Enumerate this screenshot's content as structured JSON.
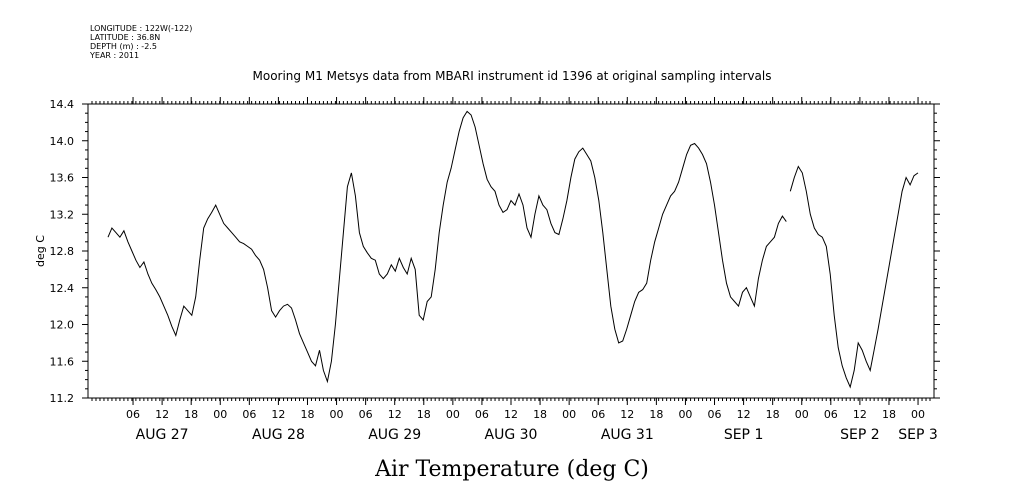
{
  "meta": [
    "LONGITUDE : 122W(-122)",
    "LATITUDE : 36.8N",
    "DEPTH (m) : -2.5",
    "YEAR : 2011"
  ],
  "chart_data": {
    "type": "line",
    "title": "Mooring M1 Metsys data from MBARI instrument id 1396 at original sampling intervals",
    "xlabel": "Air Temperature (deg C)",
    "ylabel": "deg C",
    "ylim": [
      11.2,
      14.4
    ],
    "yticks": [
      "11.2",
      "11.6",
      "12.0",
      "12.4",
      "12.8",
      "13.2",
      "13.6",
      "14.0",
      "14.4"
    ],
    "xlim_hours": [
      0,
      170
    ],
    "x_ticks": [
      {
        "h": 6,
        "label": "06"
      },
      {
        "h": 12,
        "label": "12"
      },
      {
        "h": 18,
        "label": "18"
      },
      {
        "h": 24,
        "label": "00"
      },
      {
        "h": 30,
        "label": "06"
      },
      {
        "h": 36,
        "label": "12"
      },
      {
        "h": 42,
        "label": "18"
      },
      {
        "h": 48,
        "label": "00"
      },
      {
        "h": 54,
        "label": "06"
      },
      {
        "h": 60,
        "label": "12"
      },
      {
        "h": 66,
        "label": "18"
      },
      {
        "h": 72,
        "label": "00"
      },
      {
        "h": 78,
        "label": "06"
      },
      {
        "h": 84,
        "label": "12"
      },
      {
        "h": 90,
        "label": "18"
      },
      {
        "h": 96,
        "label": "00"
      },
      {
        "h": 102,
        "label": "06"
      },
      {
        "h": 108,
        "label": "12"
      },
      {
        "h": 114,
        "label": "18"
      },
      {
        "h": 120,
        "label": "00"
      },
      {
        "h": 126,
        "label": "06"
      },
      {
        "h": 132,
        "label": "12"
      },
      {
        "h": 138,
        "label": "18"
      },
      {
        "h": 144,
        "label": "00"
      },
      {
        "h": 150,
        "label": "06"
      },
      {
        "h": 156,
        "label": "12"
      },
      {
        "h": 162,
        "label": "18"
      },
      {
        "h": 168,
        "label": "00"
      }
    ],
    "day_labels": [
      {
        "h": 12,
        "label": "AUG 27"
      },
      {
        "h": 36,
        "label": "AUG 28"
      },
      {
        "h": 60,
        "label": "AUG 29"
      },
      {
        "h": 84,
        "label": "AUG 30"
      },
      {
        "h": 108,
        "label": "AUG 31"
      },
      {
        "h": 132,
        "label": "SEP  1"
      },
      {
        "h": 156,
        "label": "SEP  2"
      },
      {
        "h": 168,
        "label": "SEP  3"
      }
    ],
    "segments": [
      [
        [
          1,
          12.95
        ],
        [
          2,
          13.05
        ],
        [
          3,
          13.0
        ],
        [
          4,
          12.95
        ],
        [
          5,
          13.02
        ],
        [
          6,
          12.9
        ],
        [
          7,
          12.8
        ],
        [
          8,
          12.7
        ],
        [
          9,
          12.62
        ],
        [
          10,
          12.68
        ],
        [
          11,
          12.55
        ],
        [
          12,
          12.45
        ],
        [
          13,
          12.38
        ],
        [
          14,
          12.3
        ],
        [
          15,
          12.2
        ],
        [
          16,
          12.1
        ],
        [
          17,
          11.98
        ],
        [
          18,
          11.88
        ],
        [
          19,
          12.05
        ],
        [
          20,
          12.2
        ],
        [
          21,
          12.15
        ],
        [
          22,
          12.1
        ],
        [
          23,
          12.3
        ],
        [
          24,
          12.7
        ],
        [
          25,
          13.05
        ],
        [
          26,
          13.15
        ],
        [
          27,
          13.22
        ],
        [
          28,
          13.3
        ],
        [
          29,
          13.2
        ],
        [
          30,
          13.1
        ],
        [
          31,
          13.05
        ],
        [
          32,
          13.0
        ],
        [
          33,
          12.95
        ],
        [
          34,
          12.9
        ],
        [
          35,
          12.88
        ],
        [
          36,
          12.85
        ],
        [
          37,
          12.82
        ],
        [
          38,
          12.75
        ],
        [
          39,
          12.7
        ],
        [
          40,
          12.6
        ],
        [
          41,
          12.4
        ],
        [
          42,
          12.15
        ],
        [
          43,
          12.08
        ],
        [
          44,
          12.15
        ],
        [
          45,
          12.2
        ],
        [
          46,
          12.22
        ],
        [
          47,
          12.18
        ],
        [
          48,
          12.05
        ],
        [
          49,
          11.9
        ],
        [
          50,
          11.8
        ],
        [
          51,
          11.7
        ],
        [
          52,
          11.6
        ],
        [
          53,
          11.55
        ],
        [
          54,
          11.72
        ],
        [
          55,
          11.5
        ],
        [
          56,
          11.38
        ],
        [
          57,
          11.6
        ],
        [
          58,
          12.0
        ],
        [
          59,
          12.5
        ],
        [
          60,
          13.0
        ],
        [
          61,
          13.5
        ],
        [
          62,
          13.65
        ],
        [
          63,
          13.4
        ],
        [
          64,
          13.0
        ],
        [
          65,
          12.85
        ],
        [
          66,
          12.78
        ],
        [
          67,
          12.72
        ],
        [
          68,
          12.7
        ],
        [
          69,
          12.55
        ],
        [
          70,
          12.5
        ],
        [
          71,
          12.55
        ],
        [
          72,
          12.65
        ],
        [
          73,
          12.58
        ],
        [
          74,
          12.72
        ],
        [
          75,
          12.62
        ],
        [
          76,
          12.55
        ],
        [
          77,
          12.72
        ],
        [
          78,
          12.6
        ],
        [
          79,
          12.1
        ],
        [
          80,
          12.05
        ],
        [
          81,
          12.25
        ],
        [
          82,
          12.3
        ],
        [
          83,
          12.6
        ],
        [
          84,
          13.0
        ],
        [
          85,
          13.3
        ],
        [
          86,
          13.55
        ],
        [
          87,
          13.7
        ],
        [
          88,
          13.9
        ],
        [
          89,
          14.1
        ],
        [
          90,
          14.25
        ],
        [
          91,
          14.32
        ],
        [
          92,
          14.28
        ],
        [
          93,
          14.15
        ],
        [
          94,
          13.95
        ],
        [
          95,
          13.75
        ],
        [
          96,
          13.58
        ],
        [
          97,
          13.5
        ],
        [
          98,
          13.45
        ],
        [
          99,
          13.3
        ],
        [
          100,
          13.22
        ],
        [
          101,
          13.25
        ],
        [
          102,
          13.35
        ],
        [
          103,
          13.3
        ],
        [
          104,
          13.42
        ],
        [
          105,
          13.3
        ],
        [
          106,
          13.05
        ],
        [
          107,
          12.95
        ],
        [
          108,
          13.2
        ],
        [
          109,
          13.4
        ],
        [
          110,
          13.3
        ],
        [
          111,
          13.25
        ],
        [
          112,
          13.1
        ],
        [
          113,
          13.0
        ],
        [
          114,
          12.98
        ],
        [
          115,
          13.15
        ],
        [
          116,
          13.35
        ],
        [
          117,
          13.6
        ],
        [
          118,
          13.8
        ],
        [
          119,
          13.88
        ],
        [
          120,
          13.92
        ],
        [
          121,
          13.85
        ],
        [
          122,
          13.78
        ],
        [
          123,
          13.6
        ],
        [
          124,
          13.35
        ],
        [
          125,
          13.0
        ],
        [
          126,
          12.6
        ],
        [
          127,
          12.2
        ],
        [
          128,
          11.95
        ],
        [
          129,
          11.8
        ],
        [
          130,
          11.82
        ],
        [
          131,
          11.95
        ],
        [
          132,
          12.1
        ],
        [
          133,
          12.25
        ],
        [
          134,
          12.35
        ],
        [
          135,
          12.38
        ],
        [
          136,
          12.45
        ],
        [
          137,
          12.7
        ],
        [
          138,
          12.9
        ],
        [
          139,
          13.05
        ],
        [
          140,
          13.2
        ],
        [
          141,
          13.3
        ],
        [
          142,
          13.4
        ],
        [
          143,
          13.45
        ],
        [
          144,
          13.55
        ],
        [
          145,
          13.7
        ],
        [
          146,
          13.85
        ],
        [
          147,
          13.95
        ],
        [
          148,
          13.97
        ],
        [
          149,
          13.92
        ],
        [
          150,
          13.85
        ],
        [
          151,
          13.75
        ],
        [
          152,
          13.55
        ],
        [
          153,
          13.3
        ],
        [
          154,
          13.0
        ],
        [
          155,
          12.7
        ],
        [
          156,
          12.45
        ],
        [
          157,
          12.3
        ],
        [
          158,
          12.25
        ],
        [
          159,
          12.2
        ],
        [
          160,
          12.35
        ],
        [
          161,
          12.4
        ],
        [
          162,
          12.3
        ],
        [
          163,
          12.2
        ],
        [
          164,
          12.5
        ],
        [
          165,
          12.7
        ],
        [
          166,
          12.85
        ],
        [
          167,
          12.9
        ],
        [
          168,
          12.95
        ],
        [
          169,
          13.1
        ],
        [
          170,
          13.18
        ],
        [
          171,
          13.12
        ]
      ],
      [
        [
          172,
          13.45
        ],
        [
          173,
          13.6
        ],
        [
          174,
          13.72
        ],
        [
          175,
          13.65
        ],
        [
          176,
          13.45
        ],
        [
          177,
          13.2
        ],
        [
          178,
          13.05
        ],
        [
          179,
          12.98
        ],
        [
          180,
          12.95
        ],
        [
          181,
          12.85
        ],
        [
          182,
          12.55
        ],
        [
          183,
          12.1
        ],
        [
          184,
          11.75
        ],
        [
          185,
          11.55
        ],
        [
          186,
          11.42
        ],
        [
          187,
          11.32
        ],
        [
          188,
          11.5
        ],
        [
          189,
          11.8
        ],
        [
          190,
          11.72
        ],
        [
          191,
          11.6
        ],
        [
          192,
          11.5
        ],
        [
          193,
          11.72
        ],
        [
          194,
          11.95
        ],
        [
          195,
          12.2
        ],
        [
          196,
          12.45
        ],
        [
          197,
          12.7
        ],
        [
          198,
          12.95
        ],
        [
          199,
          13.2
        ],
        [
          200,
          13.45
        ],
        [
          201,
          13.6
        ],
        [
          202,
          13.52
        ],
        [
          203,
          13.62
        ],
        [
          204,
          13.65
        ]
      ]
    ]
  }
}
